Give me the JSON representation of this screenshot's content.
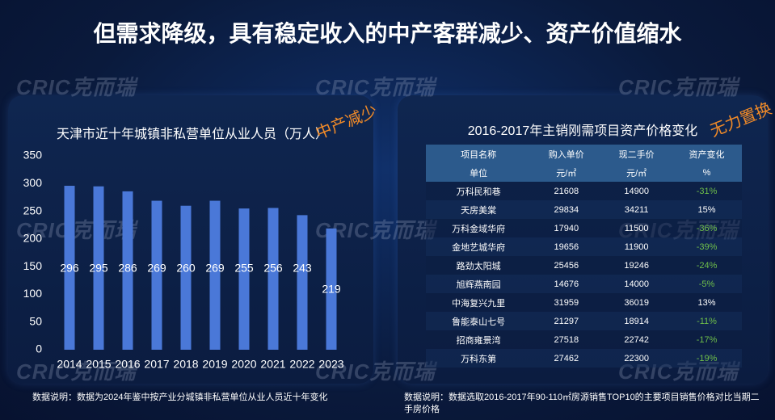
{
  "title": "但需求降级，具有稳定收入的中产客群减少、资产价值缩水",
  "watermark": "CRIC克而瑞",
  "chart_data": {
    "type": "bar",
    "title": "天津市近十年城镇非私营单位从业人员（万人）",
    "tag": "中产减少",
    "categories": [
      "2014",
      "2015",
      "2016",
      "2017",
      "2018",
      "2019",
      "2020",
      "2021",
      "2022",
      "2023"
    ],
    "values": [
      296,
      295,
      286,
      269,
      260,
      269,
      255,
      256,
      243,
      219
    ],
    "color": "#4a78d8",
    "ylim": [
      0,
      350
    ],
    "yticks": [
      0,
      50,
      100,
      150,
      200,
      250,
      300,
      350
    ],
    "note": "数据说明：数据为2024年鉴中按产业分城镇非私营单位从业人员近十年变化"
  },
  "table": {
    "title": "2016-2017年主销刚需项目资产价格变化",
    "tag": "无力置换",
    "header": [
      [
        "项目名称",
        "购入单价",
        "现二手价",
        "资产变化"
      ],
      [
        "单位",
        "元/㎡",
        "元/㎡",
        "%"
      ]
    ],
    "rows": [
      [
        "万科民和巷",
        "21608",
        "14900",
        "-31%"
      ],
      [
        "天房美棠",
        "29834",
        "34211",
        "15%"
      ],
      [
        "万科金域华府",
        "17940",
        "11500",
        "-36%"
      ],
      [
        "金地艺城华府",
        "19656",
        "11900",
        "-39%"
      ],
      [
        "路劲太阳城",
        "25456",
        "19246",
        "-24%"
      ],
      [
        "旭辉燕南园",
        "14676",
        "14000",
        "-5%"
      ],
      [
        "中海复兴九里",
        "31959",
        "36019",
        "13%"
      ],
      [
        "鲁能泰山七号",
        "21297",
        "18914",
        "-11%"
      ],
      [
        "招商雍景湾",
        "27518",
        "22742",
        "-17%"
      ],
      [
        "万科东第",
        "27462",
        "22300",
        "-19%"
      ]
    ],
    "negative_color": "#6fbf4a",
    "positive_color": "#ffffff",
    "note": "数据说明：数据选取2016-2017年90-110㎡房源销售TOP10的主要项目销售价格对比当期二手房价格"
  }
}
